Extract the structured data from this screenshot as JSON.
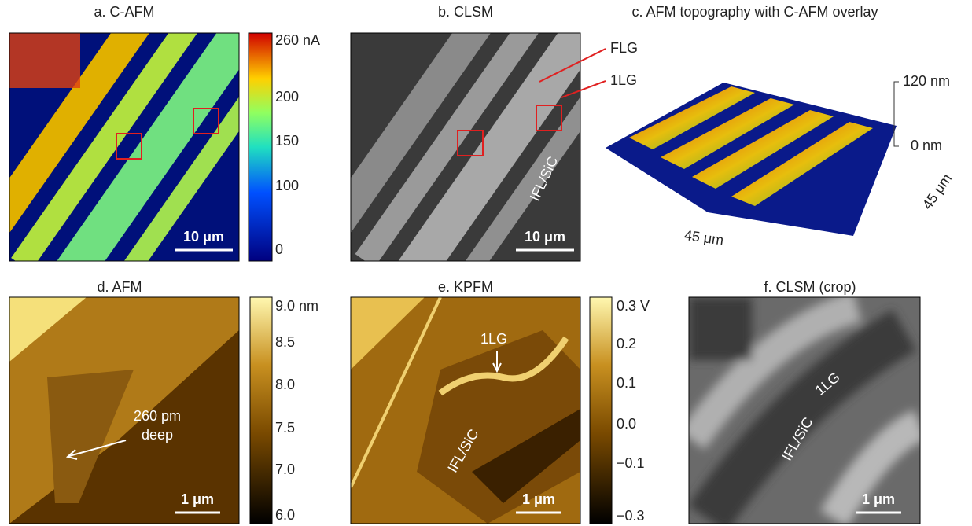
{
  "panels": [
    {
      "title": "a. C-AFM",
      "colorbar": [
        "260 nA",
        "200",
        "150",
        "100",
        "0"
      ],
      "scale_bar": "10 μm"
    },
    {
      "title": "b. CLSM",
      "annotations": [
        "FLG",
        "1LG",
        "IFL/SiC"
      ],
      "scale_bar": "10 μm"
    },
    {
      "title": "c. AFM topography with C-AFM overlay",
      "axis_labels": [
        "120 nm",
        "0 nm",
        "45 μm",
        "45 μm"
      ]
    },
    {
      "title": "d. AFM",
      "colorbar": [
        "9.0 nm",
        "8.5",
        "8.0",
        "7.5",
        "7.0",
        "6.0"
      ],
      "annotations": [
        "260 pm",
        "deep"
      ],
      "scale_bar": "1 μm"
    },
    {
      "title": "e. KPFM",
      "colorbar": [
        "0.3 V",
        "0.2",
        "0.1",
        "0.0",
        "−0.1",
        "−0.3"
      ],
      "annotations": [
        "1LG",
        "IFL/SiC"
      ],
      "scale_bar": "1 μm"
    },
    {
      "title": "f. CLSM (crop)",
      "annotations": [
        "1LG",
        "IFL/SiC"
      ],
      "scale_bar": "1 μm"
    }
  ]
}
